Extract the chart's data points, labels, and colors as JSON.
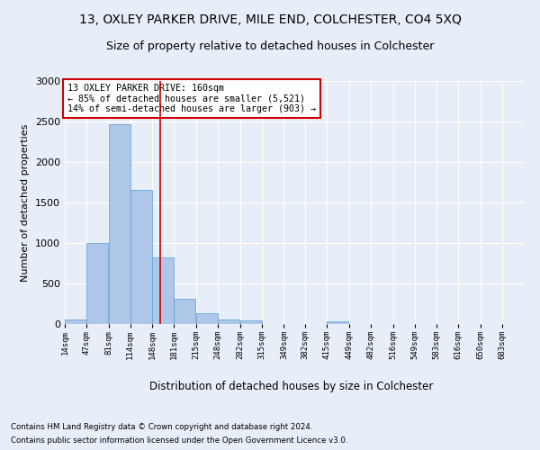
{
  "title": "13, OXLEY PARKER DRIVE, MILE END, COLCHESTER, CO4 5XQ",
  "subtitle": "Size of property relative to detached houses in Colchester",
  "xlabel": "Distribution of detached houses by size in Colchester",
  "ylabel": "Number of detached properties",
  "bin_labels": [
    "14sqm",
    "47sqm",
    "81sqm",
    "114sqm",
    "148sqm",
    "181sqm",
    "215sqm",
    "248sqm",
    "282sqm",
    "315sqm",
    "349sqm",
    "382sqm",
    "415sqm",
    "449sqm",
    "482sqm",
    "516sqm",
    "549sqm",
    "583sqm",
    "616sqm",
    "650sqm",
    "683sqm"
  ],
  "bin_edges": [
    14,
    47,
    81,
    114,
    148,
    181,
    215,
    248,
    282,
    315,
    349,
    382,
    415,
    449,
    482,
    516,
    549,
    583,
    616,
    650,
    683
  ],
  "bar_heights": [
    60,
    1000,
    2470,
    1660,
    820,
    310,
    130,
    55,
    40,
    0,
    0,
    0,
    30,
    0,
    0,
    0,
    0,
    0,
    0,
    0
  ],
  "bar_color": "#aec6e8",
  "bar_edge_color": "#5a9fd4",
  "vline_x": 160,
  "vline_color": "#cc0000",
  "annotation_text": "13 OXLEY PARKER DRIVE: 160sqm\n← 85% of detached houses are smaller (5,521)\n14% of semi-detached houses are larger (903) →",
  "annotation_box_color": "#ffffff",
  "annotation_box_edge": "#cc0000",
  "ylim": [
    0,
    3000
  ],
  "yticks": [
    0,
    500,
    1000,
    1500,
    2000,
    2500,
    3000
  ],
  "footnote1": "Contains HM Land Registry data © Crown copyright and database right 2024.",
  "footnote2": "Contains public sector information licensed under the Open Government Licence v3.0.",
  "bg_color": "#e8eef7",
  "title_fontsize": 10,
  "subtitle_fontsize": 9
}
